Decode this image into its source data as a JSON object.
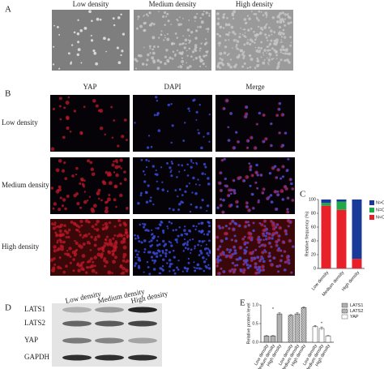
{
  "panel_labels": [
    "A",
    "B",
    "C",
    "D",
    "E"
  ],
  "panel_a": {
    "labels": [
      "Low density",
      "Medium density",
      "High density"
    ]
  },
  "panel_b": {
    "columns": [
      "YAP",
      "DAPI",
      "Merge"
    ],
    "rows": [
      "Low density",
      "Medium density",
      "High density"
    ]
  },
  "panel_d": {
    "columns": [
      "Low density",
      "Medium density",
      "High density"
    ],
    "rows": [
      "LATS1",
      "LATS2",
      "YAP",
      "GAPDH"
    ]
  },
  "chart_data": [
    {
      "type": "stacked_bar",
      "y_label": "Relative frequency (%)",
      "categories": [
        "Low density",
        "Medium density",
        "High density"
      ],
      "series": [
        {
          "name": "N<C",
          "color": "#e8202a",
          "values": [
            91,
            85,
            14
          ]
        },
        {
          "name": "N=C",
          "color": "#22a64a",
          "values": [
            4,
            12,
            0
          ]
        },
        {
          "name": "N>C",
          "color": "#1a3a9a",
          "values": [
            5,
            3,
            86
          ]
        }
      ],
      "ylim": [
        0,
        100
      ],
      "yticks": [
        0,
        20,
        40,
        60,
        80,
        100
      ],
      "legend": "right"
    },
    {
      "type": "grouped_bar",
      "y_label": "Relative protein level",
      "categories": [
        "Low density",
        "Medium density",
        "High density"
      ],
      "series": [
        {
          "name": "LATS1",
          "color": "#bbbbbb",
          "values": [
            0.17,
            0.17,
            0.76
          ],
          "errors": [
            0.01,
            0.01,
            0.03
          ]
        },
        {
          "name": "LATS2",
          "color": "#777777",
          "values": [
            0.72,
            0.76,
            0.93
          ],
          "errors": [
            0.02,
            0.03,
            0.02
          ]
        },
        {
          "name": "YAP",
          "color": "#ffffff",
          "values": [
            0.42,
            0.37,
            0.17
          ],
          "errors": [
            0.03,
            0.04,
            0.01
          ]
        }
      ],
      "ylim": [
        0,
        1.0
      ],
      "yticks": [
        {
          "value": 0,
          "label": "0.0"
        },
        {
          "value": 0.5,
          "label": "0.5"
        },
        {
          "value": 1.0,
          "label": "1.0"
        }
      ],
      "annotations": [
        "*",
        "*"
      ],
      "legend": "right"
    }
  ]
}
